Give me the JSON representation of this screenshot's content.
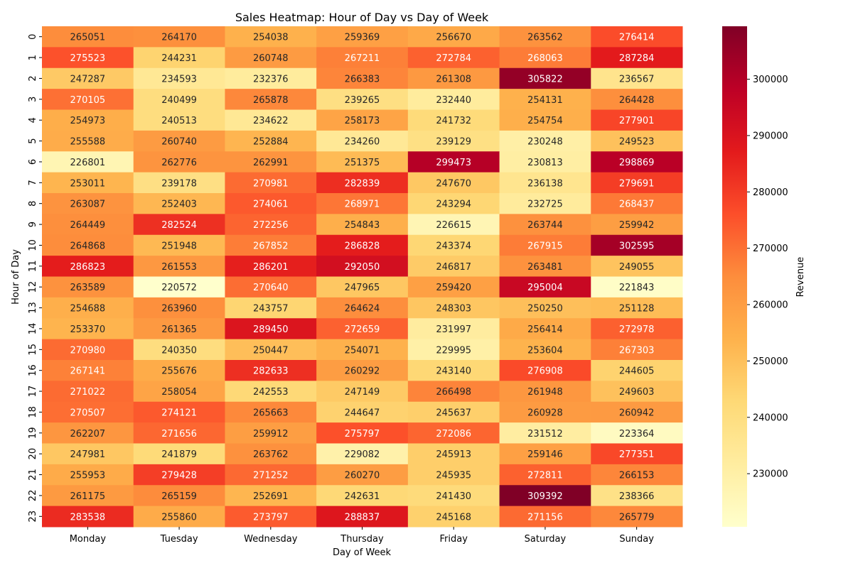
{
  "chart_data": {
    "type": "heatmap",
    "title": "Sales Heatmap: Hour of Day vs Day of Week",
    "xlabel": "Day of Week",
    "ylabel": "Hour of Day",
    "x_categories": [
      "Monday",
      "Tuesday",
      "Wednesday",
      "Thursday",
      "Friday",
      "Saturday",
      "Sunday"
    ],
    "y_categories": [
      "0",
      "1",
      "2",
      "3",
      "4",
      "5",
      "6",
      "7",
      "8",
      "9",
      "10",
      "11",
      "12",
      "13",
      "14",
      "15",
      "16",
      "17",
      "18",
      "19",
      "20",
      "21",
      "22",
      "23"
    ],
    "values": [
      [
        265051,
        264170,
        254038,
        259369,
        256670,
        263562,
        276414
      ],
      [
        275523,
        244231,
        260748,
        267211,
        272784,
        268063,
        287284
      ],
      [
        247287,
        234593,
        232376,
        266383,
        261308,
        305822,
        236567
      ],
      [
        270105,
        240499,
        265878,
        239265,
        232440,
        254131,
        264428
      ],
      [
        254973,
        240513,
        234622,
        258173,
        241732,
        254754,
        277901
      ],
      [
        255588,
        260740,
        252884,
        234260,
        239129,
        230248,
        249523
      ],
      [
        226801,
        262776,
        262991,
        251375,
        299473,
        230813,
        298869
      ],
      [
        253011,
        239178,
        270981,
        282839,
        247670,
        236138,
        279691
      ],
      [
        263087,
        252403,
        274061,
        268971,
        243294,
        232725,
        268437
      ],
      [
        264449,
        282524,
        272256,
        254843,
        226615,
        263744,
        259942
      ],
      [
        264868,
        251948,
        267852,
        286828,
        243374,
        267915,
        302595
      ],
      [
        286823,
        261553,
        286201,
        292050,
        246817,
        263481,
        249055
      ],
      [
        263589,
        220572,
        270640,
        247965,
        259420,
        295004,
        221843
      ],
      [
        254688,
        263960,
        243757,
        264624,
        248303,
        250250,
        251128
      ],
      [
        253370,
        261365,
        289450,
        272659,
        231997,
        256414,
        272978
      ],
      [
        270980,
        240350,
        250447,
        254071,
        229995,
        253604,
        267303
      ],
      [
        267141,
        255676,
        282633,
        260292,
        243140,
        276908,
        244605
      ],
      [
        271022,
        258054,
        242553,
        247149,
        266498,
        261948,
        249603
      ],
      [
        270507,
        274121,
        265663,
        244647,
        245637,
        260928,
        260942
      ],
      [
        262207,
        271656,
        259912,
        275797,
        272086,
        231512,
        223364
      ],
      [
        247981,
        241879,
        263762,
        229082,
        245913,
        259146,
        277351
      ],
      [
        255953,
        279428,
        271252,
        260270,
        245935,
        272811,
        266153
      ],
      [
        261175,
        265159,
        252691,
        242631,
        241430,
        309392,
        238366
      ],
      [
        283538,
        255860,
        273797,
        288837,
        245168,
        271156,
        265779
      ]
    ],
    "colorbar": {
      "label": "Revenue",
      "range": [
        220572,
        309392
      ],
      "ticks": [
        230000,
        240000,
        250000,
        260000,
        270000,
        280000,
        290000,
        300000
      ]
    },
    "colormap": "YlOrRd",
    "colormap_stops": [
      "#ffffcc",
      "#ffeda0",
      "#fed976",
      "#feb24c",
      "#fd8d3c",
      "#fc4e2a",
      "#e31a1c",
      "#bd0026",
      "#800026"
    ]
  }
}
